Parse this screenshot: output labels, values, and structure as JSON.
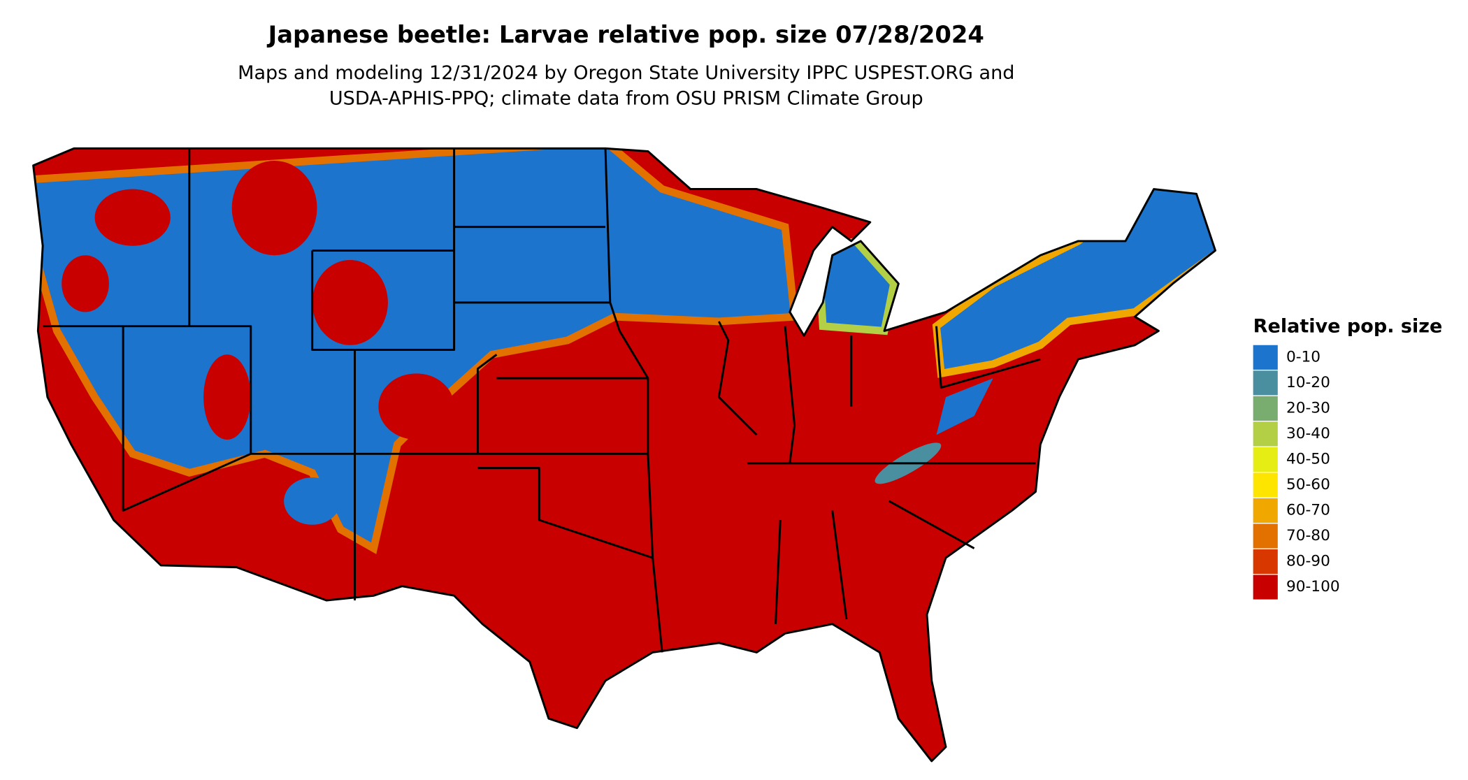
{
  "title": "Japanese beetle: Larvae relative pop. size 07/28/2024",
  "subtitle": [
    "Maps and modeling 12/31/2024 by Oregon State University IPPC USPEST.ORG and",
    "USDA-APHIS-PPQ; climate data from OSU PRISM Climate Group"
  ],
  "legend": {
    "title": "Relative pop. size",
    "items": [
      {
        "label": "0-10",
        "color": "#1c74cc"
      },
      {
        "label": "10-20",
        "color": "#4a8fa0"
      },
      {
        "label": "20-30",
        "color": "#79ad6f"
      },
      {
        "label": "30-40",
        "color": "#b2cf45"
      },
      {
        "label": "40-50",
        "color": "#e5ed15"
      },
      {
        "label": "50-60",
        "color": "#fde500"
      },
      {
        "label": "60-70",
        "color": "#f0a800"
      },
      {
        "label": "70-80",
        "color": "#e37100"
      },
      {
        "label": "80-90",
        "color": "#d83800"
      },
      {
        "label": "90-100",
        "color": "#c80000"
      }
    ]
  }
}
